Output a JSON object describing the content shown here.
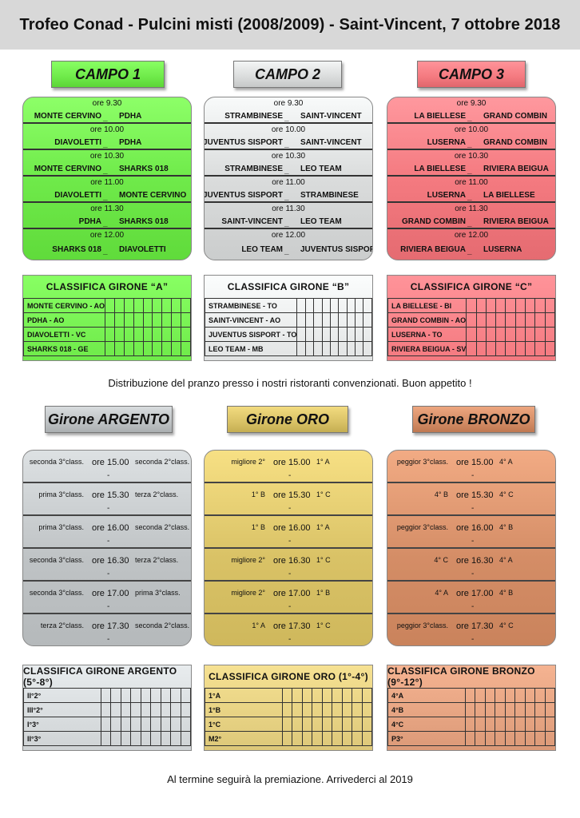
{
  "header": {
    "title": "Trofeo Conad - Pulcini misti (2008/2009) - Saint-Vincent, 7 ottobre 2018"
  },
  "campi": [
    {
      "label": "CAMPO 1",
      "color": "#6fea4a",
      "matches": [
        {
          "time": "ore 9.30",
          "home": "MONTE CERVINO",
          "away": "PDHA"
        },
        {
          "time": "ore 10.00",
          "home": "DIAVOLETTI",
          "away": "PDHA"
        },
        {
          "time": "ore 10.30",
          "home": "MONTE CERVINO",
          "away": "SHARKS 018"
        },
        {
          "time": "ore 11.00",
          "home": "DIAVOLETTI",
          "away": "MONTE CERVINO"
        },
        {
          "time": "ore 11.30",
          "home": "PDHA",
          "away": "SHARKS 018"
        },
        {
          "time": "ore 12.00",
          "home": "SHARKS 018",
          "away": "DIAVOLETTI"
        }
      ]
    },
    {
      "label": "CAMPO 2",
      "color": "#dadcdc",
      "matches": [
        {
          "time": "ore 9.30",
          "home": "STRAMBINESE",
          "away": "SAINT-VINCENT"
        },
        {
          "time": "ore 10.00",
          "home": "JUVENTUS SISPORT",
          "away": "SAINT-VINCENT"
        },
        {
          "time": "ore 10.30",
          "home": "STRAMBINESE",
          "away": "LEO TEAM"
        },
        {
          "time": "ore 11.00",
          "home": "JUVENTUS SISPORT",
          "away": "STRAMBINESE"
        },
        {
          "time": "ore 11.30",
          "home": "SAINT-VINCENT",
          "away": "LEO TEAM"
        },
        {
          "time": "ore 12.00",
          "home": "LEO TEAM",
          "away": "JUVENTUS SISPORT"
        }
      ]
    },
    {
      "label": "CAMPO 3",
      "color": "#f47a80",
      "matches": [
        {
          "time": "ore 9.30",
          "home": "LA BIELLESE",
          "away": "GRAND COMBIN"
        },
        {
          "time": "ore 10.00",
          "home": "LUSERNA",
          "away": "GRAND COMBIN"
        },
        {
          "time": "ore 10.30",
          "home": "LA BIELLESE",
          "away": "RIVIERA BEIGUA"
        },
        {
          "time": "ore 11.00",
          "home": "LUSERNA",
          "away": "LA BIELLESE"
        },
        {
          "time": "ore 11.30",
          "home": "GRAND COMBIN",
          "away": "RIVIERA BEIGUA"
        },
        {
          "time": "ore 12.00",
          "home": "RIVIERA BEIGUA",
          "away": "LUSERNA"
        }
      ]
    }
  ],
  "separator": "_",
  "gironi": [
    {
      "title": "CLASSIFICA GIRONE “A”",
      "color": "#6fea4a",
      "teams": [
        "MONTE CERVINO - AO",
        "PDHA - AO",
        "DIAVOLETTI - VC",
        "SHARKS 018 - GE"
      ]
    },
    {
      "title": "CLASSIFICA GIRONE “B”",
      "color": "#e2e4e4",
      "teams": [
        "STRAMBINESE - TO",
        "SAINT-VINCENT - AO",
        "JUVENTUS SISPORT - TO",
        "LEO TEAM - MB"
      ]
    },
    {
      "title": "CLASSIFICA GIRONE “C”",
      "color": "#f47a80",
      "teams": [
        "LA BIELLESE - BI",
        "GRAND COMBIN - AO",
        "LUSERNA - TO",
        "RIVIERA BEIGUA - SV"
      ]
    }
  ],
  "lunch_note": "Distribuzione del pranzo presso i nostri ristoranti convenzionati. Buon appetito !",
  "finals": [
    {
      "label": "Girone ARGENTO",
      "color": "#bfc3c5",
      "matches": [
        {
          "left": "seconda 3°class.",
          "time": "ore 15.00",
          "right": "seconda 2°class.",
          "dash": "-"
        },
        {
          "left": "prima 3°class.",
          "time": "ore 15.30",
          "right": "terza 2°class.",
          "dash": "-"
        },
        {
          "left": "prima 3°class.",
          "time": "ore 16.00",
          "right": "seconda 2°class.",
          "dash": "-"
        },
        {
          "left": "seconda 3°class.",
          "time": "ore 16.30",
          "right": "terza 2°class.",
          "dash": "-"
        },
        {
          "left": "seconda 3°class.",
          "time": "ore 17.00",
          "right": "prima 3°class.",
          "dash": "-"
        },
        {
          "left": "terza 2°class.",
          "time": "ore 17.30",
          "right": "seconda 2°class.",
          "dash": "-"
        }
      ]
    },
    {
      "label": "Girone ORO",
      "color": "#d9c266",
      "matches": [
        {
          "left": "migliore 2°",
          "time": "ore 15.00",
          "right": "1° A",
          "dash": "-"
        },
        {
          "left": "1° B",
          "time": "ore 15.30",
          "right": "1° C",
          "dash": "-"
        },
        {
          "left": "1° B",
          "time": "ore 16.00",
          "right": "1° A",
          "dash": "-"
        },
        {
          "left": "migliore 2°",
          "time": "ore 16.30",
          "right": "1° C",
          "dash": "-"
        },
        {
          "left": "migliore 2°",
          "time": "ore 17.00",
          "right": "1° B",
          "dash": "-"
        },
        {
          "left": "1° A",
          "time": "ore 17.30",
          "right": "1° C",
          "dash": "-"
        }
      ]
    },
    {
      "label": "Girone BRONZO",
      "color": "#d48d66",
      "matches": [
        {
          "left": "peggior 3°class.",
          "time": "ore 15.00",
          "right": "4° A",
          "dash": "-"
        },
        {
          "left": "4° B",
          "time": "ore 15.30",
          "right": "4° C",
          "dash": "-"
        },
        {
          "left": "peggior 3°class.",
          "time": "ore 16.00",
          "right": "4° B",
          "dash": "-"
        },
        {
          "left": "4° C",
          "time": "ore 16.30",
          "right": "4° A",
          "dash": "-"
        },
        {
          "left": "4° A",
          "time": "ore 17.00",
          "right": "4° B",
          "dash": "-"
        },
        {
          "left": "peggior 3°class.",
          "time": "ore 17.30",
          "right": "4° C",
          "dash": "-"
        }
      ]
    }
  ],
  "classifiche_finali": [
    {
      "title": "CLASSIFICA GIRONE ARGENTO (5°-8°)",
      "color": "#cfd3d5",
      "teams": [
        "II°2°",
        "III°2°",
        "I°3°",
        "II°3°"
      ]
    },
    {
      "title": "CLASSIFICA GIRONE ORO (1°-4°)",
      "color": "#ddc879",
      "teams": [
        "1°A",
        "1°B",
        "1°C",
        "M2°"
      ]
    },
    {
      "title": "CLASSIFICA GIRONE BRONZO (9°-12°)",
      "color": "#dc9a78",
      "teams": [
        "4°A",
        "4°B",
        "4°C",
        "P3°"
      ]
    }
  ],
  "footer_note": "Al termine seguirà la premiazione. Arrivederci al 2019"
}
